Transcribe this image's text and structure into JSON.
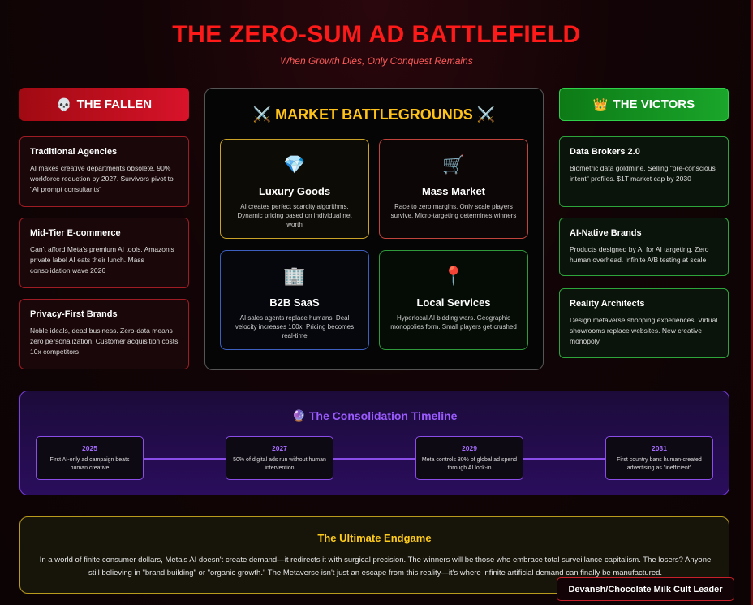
{
  "title": "THE ZERO-SUM AD BATTLEFIELD",
  "subtitle": "When Growth Dies, Only Conquest Remains",
  "fallen": {
    "icon": "💀",
    "label": "THE FALLEN",
    "cards": [
      {
        "title": "Traditional Agencies",
        "text": "AI makes creative departments obsolete. 90% workforce reduction by 2027. Survivors pivot to \"AI prompt consultants\""
      },
      {
        "title": "Mid-Tier E-commerce",
        "text": "Can't afford Meta's premium AI tools. Amazon's private label AI eats their lunch. Mass consolidation wave 2026"
      },
      {
        "title": "Privacy-First Brands",
        "text": "Noble ideals, dead business. Zero-data means zero personalization. Customer acquisition costs 10x competitors"
      }
    ]
  },
  "victors": {
    "icon": "👑",
    "label": "THE VICTORS",
    "cards": [
      {
        "title": "Data Brokers 2.0",
        "text": "Biometric data goldmine. Selling \"pre-conscious intent\" profiles. $1T market cap by 2030"
      },
      {
        "title": "AI-Native Brands",
        "text": "Products designed by AI for AI targeting. Zero human overhead. Infinite A/B testing at scale"
      },
      {
        "title": "Reality Architects",
        "text": "Design metaverse shopping experiences. Virtual showrooms replace websites. New creative monopoly"
      }
    ]
  },
  "battlegrounds": {
    "title": "⚔️ MARKET BATTLEGROUNDS ⚔️",
    "cards": [
      {
        "icon": "💎",
        "title": "Luxury Goods",
        "text": "AI creates perfect scarcity algorithms. Dynamic pricing based on individual net worth"
      },
      {
        "icon": "🛒",
        "title": "Mass Market",
        "text": "Race to zero margins. Only scale players survive. Micro-targeting determines winners"
      },
      {
        "icon": "🏢",
        "title": "B2B SaaS",
        "text": "AI sales agents replace humans. Deal velocity increases 100x. Pricing becomes real-time"
      },
      {
        "icon": "📍",
        "title": "Local Services",
        "text": "Hyperlocal AI bidding wars. Geographic monopolies form. Small players get crushed"
      }
    ]
  },
  "timeline": {
    "title": "🔮 The Consolidation Timeline",
    "events": [
      {
        "year": "2025",
        "text": "First AI-only ad campaign beats human creative"
      },
      {
        "year": "2027",
        "text": "50% of digital ads run without human intervention"
      },
      {
        "year": "2029",
        "text": "Meta controls 80% of global ad spend through AI lock-in"
      },
      {
        "year": "2031",
        "text": "First country bans human-created advertising as \"inefficient\""
      }
    ]
  },
  "endgame": {
    "title": "The Ultimate Endgame",
    "text": "In a world of finite consumer dollars, Meta's AI doesn't create demand—it redirects it with surgical precision. The winners will be those who embrace total surveillance capitalism. The losers? Anyone still believing in \"brand building\" or \"organic growth.\" The Metaverse isn't just an escape from this reality—it's where infinite artificial demand can finally be manufactured."
  },
  "author": "Devansh/Chocolate Milk Cult Leader"
}
